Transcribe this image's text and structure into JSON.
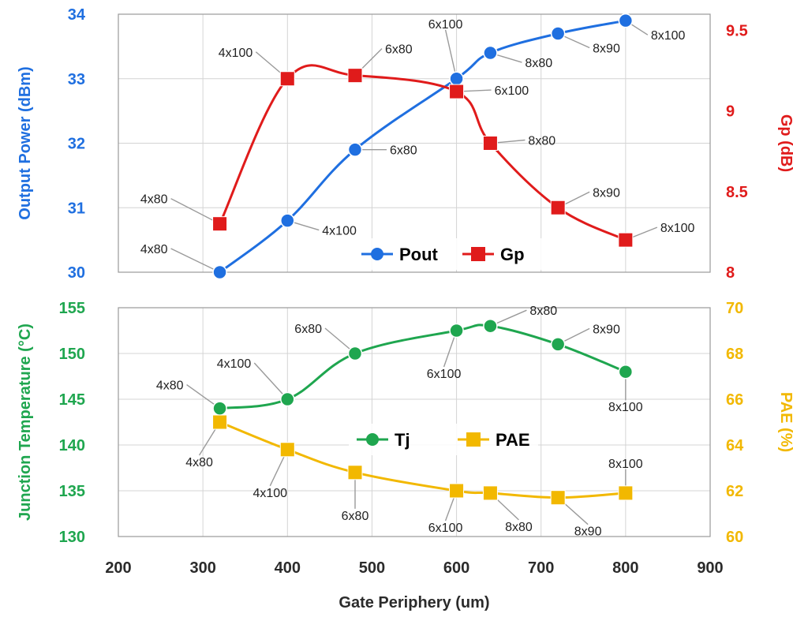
{
  "colors": {
    "pout": "#1f6fe0",
    "gp": "#e01b1b",
    "tj": "#1fa64f",
    "pae": "#f2b800",
    "xaxis": "#2b2b2b"
  },
  "chart_data": [
    {
      "type": "line",
      "panel": "top",
      "xlim": [
        200,
        900
      ],
      "ylim_left": [
        30,
        34
      ],
      "ylim_right": [
        8,
        9.6
      ],
      "yticks_left": [
        "30",
        "31",
        "32",
        "33",
        "34"
      ],
      "yticks_right": [
        "8",
        "8.5",
        "9",
        "9.5"
      ],
      "ylabel_left": "Output Power (dBm)",
      "ylabel_right": "Gp (dB)",
      "grid": true,
      "legend_placement": "bottom-center",
      "series": [
        {
          "name": "Pout",
          "axis": "left",
          "marker": "circle",
          "x": [
            320,
            400,
            480,
            600,
            640,
            720,
            800
          ],
          "y": [
            30.0,
            30.8,
            31.9,
            33.0,
            33.4,
            33.7,
            33.9
          ],
          "labels": [
            "4x80",
            "4x100",
            "6x80",
            "6x100",
            "8x80",
            "8x90",
            "8x100"
          ]
        },
        {
          "name": "Gp",
          "axis": "right",
          "marker": "square",
          "x": [
            320,
            400,
            480,
            600,
            640,
            720,
            800
          ],
          "y": [
            8.3,
            9.2,
            9.22,
            9.12,
            8.8,
            8.4,
            8.2
          ],
          "labels": [
            "4x80",
            "4x100",
            "6x80",
            "6x100",
            "8x80",
            "8x90",
            "8x100"
          ]
        }
      ]
    },
    {
      "type": "line",
      "panel": "bottom",
      "xlim": [
        200,
        900
      ],
      "ylim_left": [
        130,
        155
      ],
      "ylim_right": [
        60,
        70
      ],
      "yticks_left": [
        "130",
        "135",
        "140",
        "145",
        "150",
        "155"
      ],
      "yticks_right": [
        "60",
        "62",
        "64",
        "66",
        "68",
        "70"
      ],
      "ylabel_left": "Junction Temperature (°C)",
      "ylabel_right": "PAE (%)",
      "xlabel": "Gate Periphery (um)",
      "xticks": [
        "200",
        "300",
        "400",
        "500",
        "600",
        "700",
        "800",
        "900"
      ],
      "grid": true,
      "legend_placement": "center",
      "series": [
        {
          "name": "Tj",
          "axis": "left",
          "marker": "circle",
          "x": [
            320,
            400,
            480,
            600,
            640,
            720,
            800
          ],
          "y": [
            144,
            145,
            150,
            152.5,
            153,
            151,
            148
          ],
          "labels": [
            "4x80",
            "4x100",
            "6x80",
            "6x100",
            "8x80",
            "8x90",
            "8x100"
          ]
        },
        {
          "name": "PAE",
          "axis": "right",
          "marker": "square",
          "x": [
            320,
            400,
            480,
            600,
            640,
            720,
            800
          ],
          "y": [
            65,
            63.8,
            62.8,
            62.0,
            61.9,
            61.7,
            61.9
          ],
          "labels": [
            "4x80",
            "4x100",
            "6x80",
            "6x100",
            "8x80",
            "8x90",
            "8x100"
          ]
        }
      ]
    }
  ]
}
